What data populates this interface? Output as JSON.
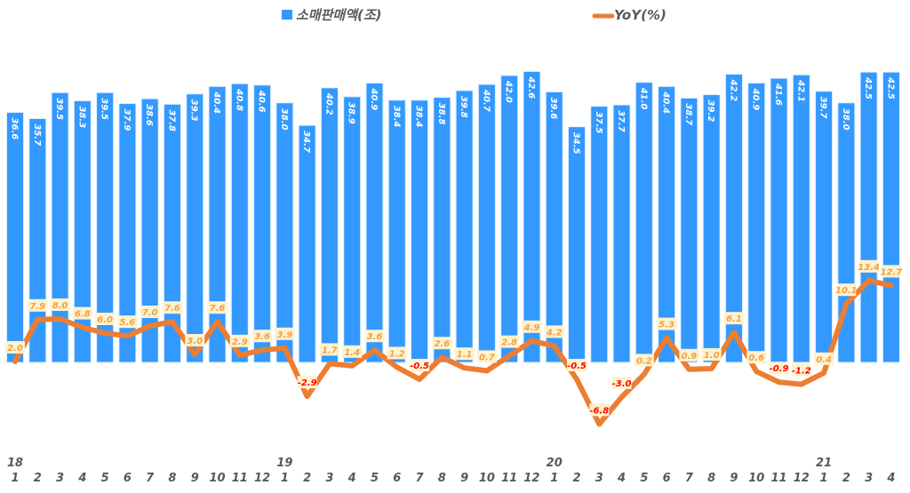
{
  "chart_data": {
    "type": "bar+line",
    "legend_position": "top",
    "grid": false,
    "years": [
      {
        "label": "18",
        "index": 0
      },
      {
        "label": "19",
        "index": 12
      },
      {
        "label": "20",
        "index": 24
      },
      {
        "label": "21",
        "index": 36
      }
    ],
    "categories": [
      "1",
      "2",
      "3",
      "4",
      "5",
      "6",
      "7",
      "8",
      "9",
      "10",
      "11",
      "12",
      "1",
      "2",
      "3",
      "4",
      "5",
      "6",
      "7",
      "8",
      "9",
      "10",
      "11",
      "12",
      "1",
      "2",
      "3",
      "4",
      "5",
      "6",
      "7",
      "8",
      "9",
      "10",
      "11",
      "12",
      "1",
      "2",
      "3",
      "4"
    ],
    "series": [
      {
        "name": "소매판매액(조)",
        "type": "bar",
        "axis": "primary",
        "color": "#3399FF",
        "values": [
          36.6,
          35.7,
          39.5,
          38.3,
          39.5,
          37.9,
          38.6,
          37.8,
          39.3,
          40.4,
          40.8,
          40.6,
          38.0,
          34.7,
          40.2,
          38.9,
          40.9,
          38.4,
          38.4,
          38.8,
          39.8,
          40.7,
          42.0,
          42.6,
          39.6,
          34.5,
          37.5,
          37.7,
          41.0,
          40.4,
          38.7,
          39.2,
          42.2,
          40.9,
          41.6,
          42.1,
          39.7,
          38.0,
          42.5,
          42.5
        ]
      },
      {
        "name": "YoY(%)",
        "type": "line",
        "axis": "secondary",
        "color": "#ED7D31",
        "values": [
          2.0,
          7.9,
          8.0,
          6.8,
          6.0,
          5.6,
          7.0,
          7.6,
          3.0,
          7.6,
          2.9,
          3.6,
          3.9,
          -2.9,
          1.7,
          1.4,
          3.6,
          1.2,
          -0.5,
          2.6,
          1.1,
          0.7,
          2.8,
          4.9,
          4.2,
          -0.5,
          -6.8,
          -3.0,
          0.2,
          5.3,
          0.9,
          1.0,
          6.1,
          0.6,
          -0.9,
          -1.2,
          0.4,
          10.1,
          13.4,
          12.7
        ]
      }
    ],
    "primary_ylim": [
      0,
      45
    ],
    "secondary_ylim": [
      -10,
      45
    ],
    "positive_label_color": "#F0A04B",
    "negative_label_color": "#FF0000",
    "label_bg": "#FFF2CC"
  }
}
